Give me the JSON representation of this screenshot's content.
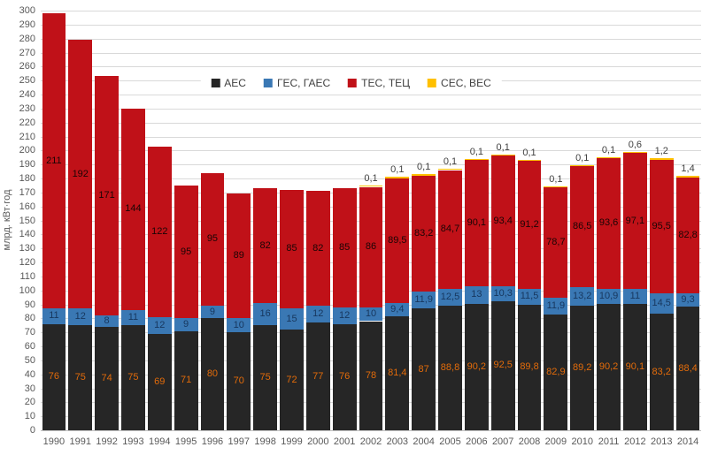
{
  "chart_data": {
    "type": "bar",
    "stacked": true,
    "title": "",
    "xlabel": "",
    "ylabel": "млрд. кВт·год",
    "ylim": [
      0,
      300
    ],
    "ytick_step": 10,
    "grid": true,
    "legend_position": "top-center-inside",
    "categories": [
      "1990",
      "1991",
      "1992",
      "1993",
      "1994",
      "1995",
      "1996",
      "1997",
      "1998",
      "1999",
      "2000",
      "2001",
      "2002",
      "2003",
      "2004",
      "2005",
      "2006",
      "2007",
      "2008",
      "2009",
      "2010",
      "2011",
      "2012",
      "2013",
      "2014"
    ],
    "series": [
      {
        "name": "АЕС",
        "key": "aes",
        "color": "#262626",
        "label_color": "#e26b0a",
        "label_position": "inside",
        "values": [
          76,
          75,
          74,
          75,
          69,
          71,
          80,
          70,
          75,
          72,
          77,
          76,
          78,
          81.4,
          87,
          88.8,
          90.2,
          92.5,
          89.8,
          82.9,
          89.2,
          90.2,
          90.1,
          83.2,
          88.4
        ],
        "labels": [
          "76",
          "75",
          "74",
          "75",
          "69",
          "71",
          "80",
          "70",
          "75",
          "72",
          "77",
          "76",
          "78",
          "81,4",
          "87",
          "88,8",
          "90,2",
          "92,5",
          "89,8",
          "82,9",
          "89,2",
          "90,2",
          "90,1",
          "83,2",
          "88,4"
        ]
      },
      {
        "name": "ГЕС, ГАЕС",
        "key": "ges-gaes",
        "color": "#3a78b4",
        "label_color": "#17375e",
        "label_position": "inside",
        "values": [
          11,
          12,
          8,
          11,
          12,
          9,
          9,
          10,
          16,
          15,
          12,
          12,
          10,
          9.4,
          11.9,
          12.5,
          13,
          10.3,
          11.5,
          11.9,
          13.2,
          10.9,
          11,
          14.5,
          9.3
        ],
        "labels": [
          "11",
          "12",
          "8",
          "11",
          "12",
          "9",
          "9",
          "10",
          "16",
          "15",
          "12",
          "12",
          "10",
          "9,4",
          "11,9",
          "12,5",
          "13",
          "10,3",
          "11,5",
          "11,9",
          "13,2",
          "10,9",
          "11",
          "14,5",
          "9,3"
        ]
      },
      {
        "name": "ТЕС, ТЕЦ",
        "key": "tes-tets",
        "color": "#c01118",
        "label_color": "#1a0505",
        "label_position": "inside",
        "values": [
          211,
          192,
          171,
          144,
          122,
          95,
          95,
          89,
          82,
          85,
          82,
          85,
          86,
          89.5,
          83.2,
          84.7,
          90.1,
          93.4,
          91.2,
          78.7,
          86.5,
          93.6,
          97.1,
          95.5,
          82.8
        ],
        "labels": [
          "211",
          "192",
          "171",
          "144",
          "122",
          "95",
          "95",
          "89",
          "82",
          "85",
          "82",
          "85",
          "86",
          "89,5",
          "83,2",
          "84,7",
          "90,1",
          "93,4",
          "91,2",
          "78,7",
          "86,5",
          "93,6",
          "97,1",
          "95,5",
          "82,8"
        ]
      },
      {
        "name": "СЕС, ВЕС",
        "key": "ses-ves",
        "color": "#ffc000",
        "label_color": "#404040",
        "label_position": "above",
        "values": [
          0,
          0,
          0,
          0,
          0,
          0,
          0,
          0,
          0,
          0,
          0,
          0,
          0.1,
          0.1,
          0.1,
          0.1,
          0.1,
          0.1,
          0.1,
          0.1,
          0.1,
          0.1,
          0.6,
          1.2,
          1.4
        ],
        "labels": [
          "",
          "",
          "",
          "",
          "",
          "",
          "",
          "",
          "",
          "",
          "",
          "",
          "0,1",
          "0,1",
          "0,1",
          "0,1",
          "0,1",
          "0,1",
          "0,1",
          "0,1",
          "0,1",
          "0,1",
          "0,6",
          "1,2",
          "1,4"
        ]
      }
    ]
  },
  "legend": {
    "items": [
      {
        "label": "АЕС",
        "color": "#262626"
      },
      {
        "label": "ГЕС, ГАЕС",
        "color": "#3a78b4"
      },
      {
        "label": "ТЕС, ТЕЦ",
        "color": "#c01118"
      },
      {
        "label": "СЕС, ВЕС",
        "color": "#ffc000"
      }
    ]
  }
}
